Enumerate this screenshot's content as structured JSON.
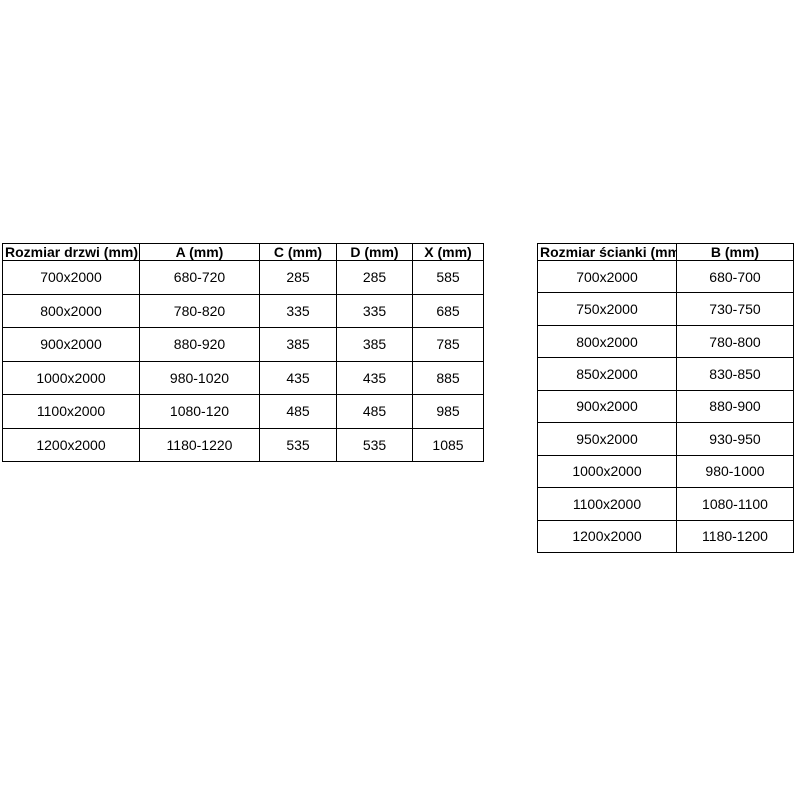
{
  "page": {
    "background_color": "#ffffff",
    "border_color": "#000000",
    "text_color": "#000000"
  },
  "tables": [
    {
      "id": "door-size-table",
      "headers": [
        "Rozmiar drzwi (mm)",
        "A (mm)",
        "C (mm)",
        "D (mm)",
        "X (mm)"
      ],
      "rows": [
        [
          "700x2000",
          "680-720",
          "285",
          "285",
          "585"
        ],
        [
          "800x2000",
          "780-820",
          "335",
          "335",
          "685"
        ],
        [
          "900x2000",
          "880-920",
          "385",
          "385",
          "785"
        ],
        [
          "1000x2000",
          "980-1020",
          "435",
          "435",
          "885"
        ],
        [
          "1100x2000",
          "1080-120",
          "485",
          "485",
          "985"
        ],
        [
          "1200x2000",
          "1180-1220",
          "535",
          "535",
          "1085"
        ]
      ]
    },
    {
      "id": "wall-size-table",
      "headers": [
        "Rozmiar ścianki (mm)",
        "B (mm)"
      ],
      "rows": [
        [
          "700x2000",
          "680-700"
        ],
        [
          "750x2000",
          "730-750"
        ],
        [
          "800x2000",
          "780-800"
        ],
        [
          "850x2000",
          "830-850"
        ],
        [
          "900x2000",
          "880-900"
        ],
        [
          "950x2000",
          "930-950"
        ],
        [
          "1000x2000",
          "980-1000"
        ],
        [
          "1100x2000",
          "1080-1100"
        ],
        [
          "1200x2000",
          "1180-1200"
        ]
      ]
    }
  ]
}
